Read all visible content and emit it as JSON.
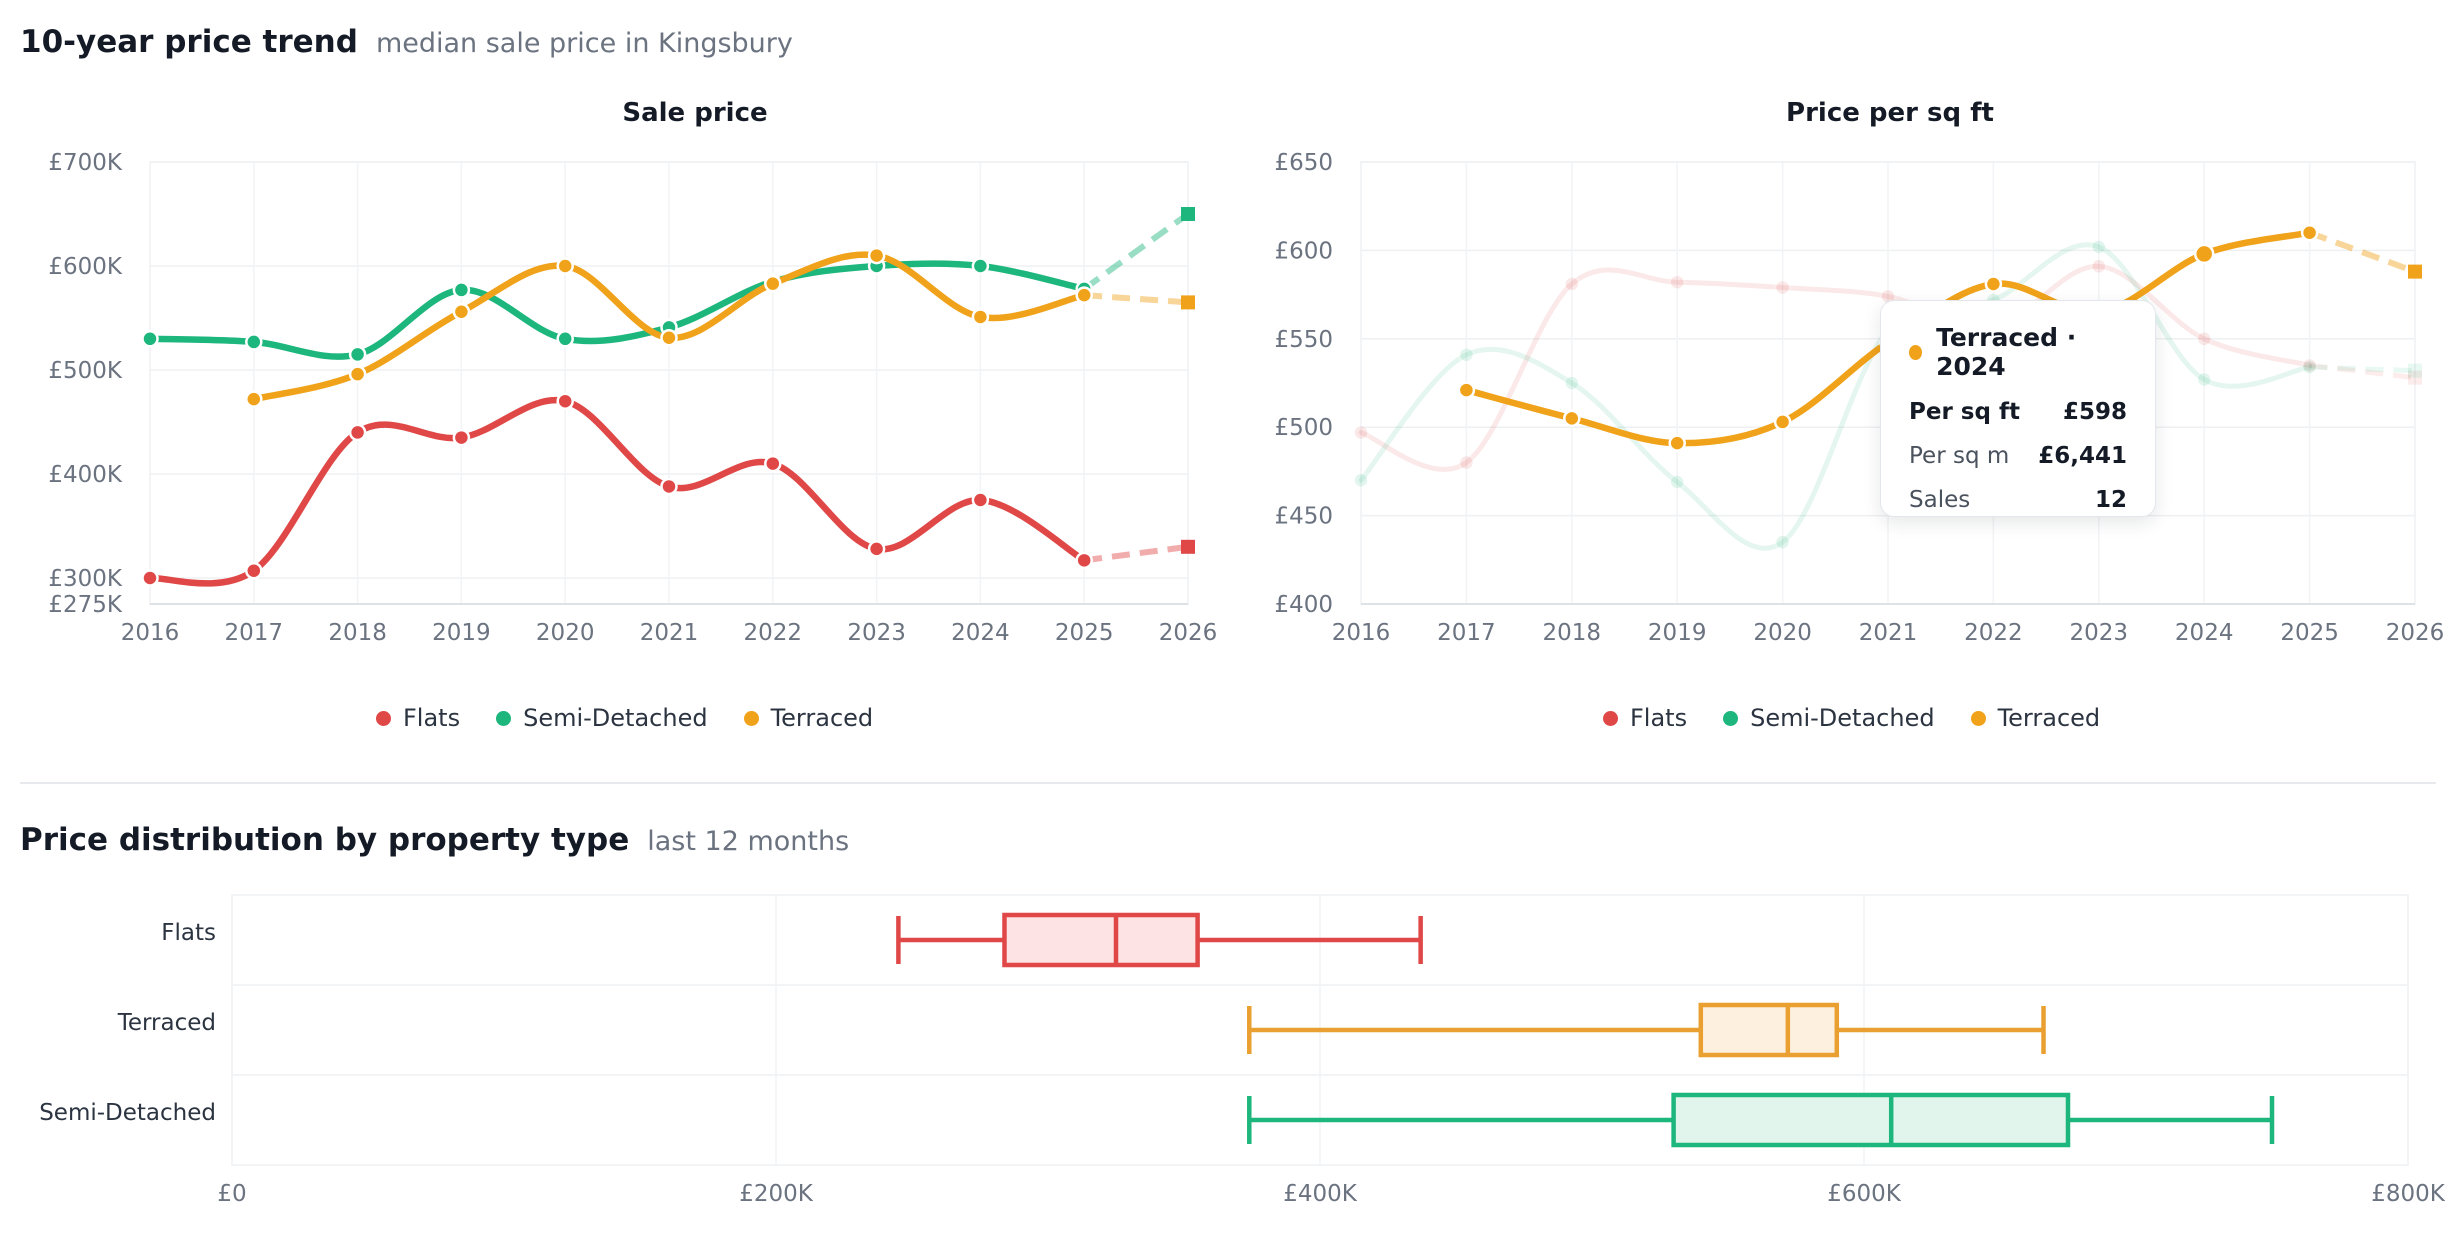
{
  "header": {
    "title": "10-year price trend",
    "subtitle": "median sale price in Kingsbury"
  },
  "section2": {
    "title": "Price distribution by property type",
    "subtitle": "last 12 months"
  },
  "legend": {
    "items": [
      {
        "label": "Flats",
        "color": "#e04848"
      },
      {
        "label": "Semi-Detached",
        "color": "#1db67c"
      },
      {
        "label": "Terraced",
        "color": "#f0a21a"
      }
    ]
  },
  "tooltip": {
    "title": "Terraced · 2024",
    "rows": [
      {
        "label": "Per sq ft",
        "value": "£598"
      },
      {
        "label": "Per sq m",
        "value": "£6,441"
      },
      {
        "label": "Sales",
        "value": "12"
      }
    ]
  },
  "chart_data": [
    {
      "type": "line",
      "title": "Sale price",
      "x": [
        2016,
        2017,
        2018,
        2019,
        2020,
        2021,
        2022,
        2023,
        2024,
        2025,
        2026
      ],
      "ylim": [
        275000,
        700000
      ],
      "y_ticks": [
        275000,
        300000,
        400000,
        500000,
        600000,
        700000
      ],
      "y_tick_labels": [
        "£275K",
        "£300K",
        "£400K",
        "£500K",
        "£600K",
        "£700K"
      ],
      "grid": true,
      "legend_position": "bottom",
      "series": [
        {
          "name": "Flats",
          "color": "#e04848",
          "values": [
            300000,
            307000,
            440000,
            435000,
            470000,
            388000,
            410000,
            328000,
            375000,
            317000,
            330000
          ],
          "forecast_from": 2025
        },
        {
          "name": "Semi-Detached",
          "color": "#1db67c",
          "values": [
            530000,
            527000,
            515000,
            577000,
            530000,
            541000,
            585000,
            600000,
            600000,
            578000,
            650000
          ],
          "forecast_from": 2025
        },
        {
          "name": "Terraced",
          "color": "#f0a21a",
          "values": [
            null,
            472000,
            496000,
            556000,
            600000,
            531000,
            583000,
            610000,
            551000,
            572000,
            565000
          ],
          "forecast_from": 2025
        }
      ]
    },
    {
      "type": "line",
      "title": "Price per sq ft",
      "x": [
        2016,
        2017,
        2018,
        2019,
        2020,
        2021,
        2022,
        2023,
        2024,
        2025,
        2026
      ],
      "ylim": [
        400,
        650
      ],
      "y_ticks": [
        400,
        450,
        500,
        550,
        600,
        650
      ],
      "y_tick_labels": [
        "£400",
        "£450",
        "£500",
        "£550",
        "£600",
        "£650"
      ],
      "grid": true,
      "legend_position": "bottom",
      "highlighted_series": "Terraced",
      "series": [
        {
          "name": "Flats",
          "color": "#e04848",
          "values": [
            497,
            480,
            581,
            582,
            579,
            574,
            557,
            591,
            550,
            535,
            528
          ],
          "forecast_from": 2025
        },
        {
          "name": "Semi-Detached",
          "color": "#1db67c",
          "values": [
            470,
            541,
            525,
            469,
            435,
            555,
            572,
            602,
            527,
            534,
            532
          ],
          "forecast_from": 2025
        },
        {
          "name": "Terraced",
          "color": "#f0a21a",
          "values": [
            null,
            521,
            505,
            491,
            503,
            548,
            581,
            565,
            598,
            610,
            588
          ],
          "forecast_from": 2025
        }
      ]
    },
    {
      "type": "box",
      "title": "Price distribution by property type",
      "xlim": [
        0,
        800000
      ],
      "x_ticks": [
        0,
        200000,
        400000,
        600000,
        800000
      ],
      "x_tick_labels": [
        "£0",
        "£200K",
        "£400K",
        "£600K",
        "£800K"
      ],
      "categories": [
        "Flats",
        "Terraced",
        "Semi-Detached"
      ],
      "boxes": [
        {
          "category": "Flats",
          "color": "#e04848",
          "fill": "#fde3e3",
          "min": 245000,
          "q1": 284000,
          "median": 325000,
          "q3": 355000,
          "max": 437000
        },
        {
          "category": "Terraced",
          "color": "#e9a030",
          "fill": "#fdf0df",
          "min": 374000,
          "q1": 540000,
          "median": 572000,
          "q3": 590000,
          "max": 666000
        },
        {
          "category": "Semi-Detached",
          "color": "#1db67c",
          "fill": "#e1f5ec",
          "min": 374000,
          "q1": 530000,
          "median": 610000,
          "q3": 675000,
          "max": 750000
        }
      ]
    }
  ]
}
